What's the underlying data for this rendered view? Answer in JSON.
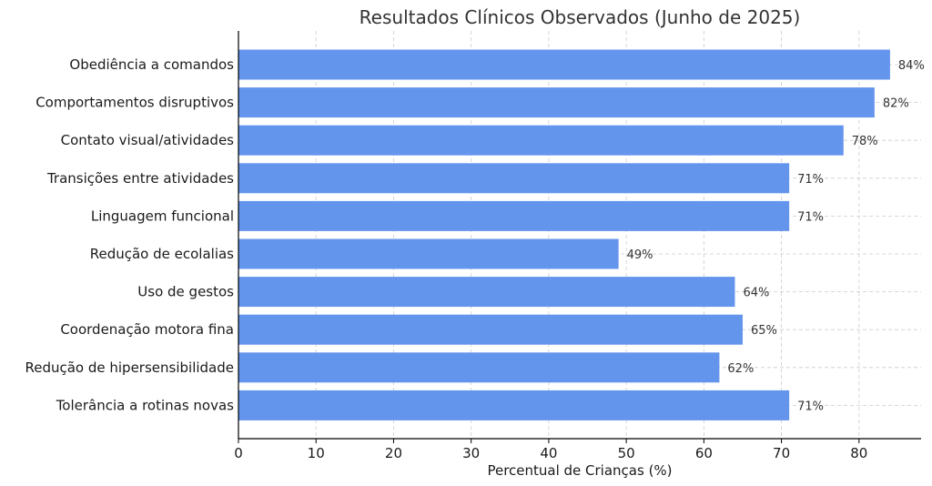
{
  "chart_data": {
    "type": "bar",
    "orientation": "horizontal",
    "title": "Resultados Clínicos Observados (Junho de 2025)",
    "xlabel": "Percentual de Crianças (%)",
    "ylabel": "",
    "xlim": [
      0,
      88
    ],
    "xticks": [
      0,
      10,
      20,
      30,
      40,
      50,
      60,
      70,
      80
    ],
    "grid": true,
    "bar_color": "#6495ED",
    "value_suffix": "%",
    "categories": [
      "Obediência a comandos",
      "Comportamentos disruptivos",
      "Contato visual/atividades",
      "Transições entre atividades",
      "Linguagem funcional",
      "Redução de ecolalias",
      "Uso de gestos",
      "Coordenação motora fina",
      "Redução de hipersensibilidade",
      "Tolerância a rotinas novas"
    ],
    "values": [
      84,
      82,
      78,
      71,
      71,
      49,
      64,
      65,
      62,
      71
    ]
  }
}
